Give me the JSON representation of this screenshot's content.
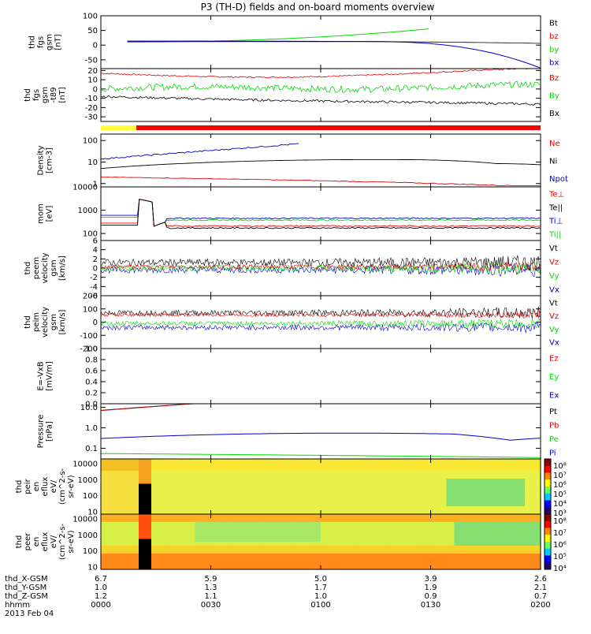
{
  "title": "P3 (TH-D) fields and on-board moments overview",
  "colors": {
    "black": "#000000",
    "red": "#e00000",
    "green": "#00dd00",
    "blue": "#0000cc",
    "yellow": "#ffff33",
    "bar_red": "#ff0000"
  },
  "chart_data": {
    "type": "line",
    "x_ticks": [
      "0000",
      "0030",
      "0100",
      "0130",
      "0200"
    ],
    "panels": [
      {
        "id": "fgs",
        "ylabel": [
          "thd",
          "fgs",
          "gsm",
          "[nT]"
        ],
        "yticks": [
          "100",
          "50",
          "0",
          "-50"
        ],
        "ylim": [
          -80,
          100
        ],
        "scale": "linear",
        "legend": [
          {
            "name": "Bt",
            "color": "#000000"
          },
          {
            "name": "bz",
            "color": "#e00000"
          },
          {
            "name": "by",
            "color": "#00dd00"
          },
          {
            "name": "bx",
            "color": "#0000cc"
          }
        ]
      },
      {
        "id": "fgs_dsl",
        "ylabel": [
          "thd",
          "fgs",
          "gsm",
          "-t89",
          "[nT]"
        ],
        "yticks": [
          "20",
          "10",
          "0",
          "-10",
          "-20",
          "-30"
        ],
        "ylim": [
          -35,
          22
        ],
        "scale": "linear",
        "legend": [
          {
            "name": "Bz",
            "color": "#e00000"
          },
          {
            "name": "By",
            "color": "#00dd00"
          },
          {
            "name": "Bx",
            "color": "#000000"
          }
        ]
      },
      {
        "id": "density",
        "ylabel": [
          "Density",
          "[cm-3]"
        ],
        "yticks": [
          "100",
          "10",
          "1"
        ],
        "ylim": [
          0.7,
          200
        ],
        "scale": "log",
        "legend": [
          {
            "name": "Ne",
            "color": "#e00000"
          },
          {
            "name": "Ni",
            "color": "#000000"
          },
          {
            "name": "Npot",
            "color": "#0000cc"
          }
        ]
      },
      {
        "id": "temp",
        "ylabel": [
          "mom",
          "[eV]"
        ],
        "yticks": [
          "10000",
          "1000",
          "100"
        ],
        "ylim": [
          50,
          10000
        ],
        "scale": "log",
        "legend": [
          {
            "name": "Te⊥",
            "color": "#e00000"
          },
          {
            "name": "Te||",
            "color": "#000000"
          },
          {
            "name": "Ti⊥",
            "color": "#0000cc"
          },
          {
            "name": "Ti||",
            "color": "#00dd00"
          }
        ]
      },
      {
        "id": "vel_e",
        "ylabel": [
          "thd",
          "peem",
          "velocity",
          "gsm",
          "[km/s]"
        ],
        "yticks": [
          "6",
          "4",
          "2",
          "0",
          "-2",
          "-4",
          "-6"
        ],
        "ylim": [
          -6,
          6
        ],
        "scale": "linear",
        "legend": [
          {
            "name": "Vt",
            "color": "#000000"
          },
          {
            "name": "Vz",
            "color": "#e00000"
          },
          {
            "name": "Vy",
            "color": "#00dd00"
          },
          {
            "name": "Vx",
            "color": "#0000cc"
          }
        ]
      },
      {
        "id": "vel_i",
        "ylabel": [
          "thd",
          "peim",
          "velocity",
          "gsm",
          "[km/s]"
        ],
        "yticks": [
          "200",
          "100",
          "0",
          "-100",
          "-200"
        ],
        "ylim": [
          -200,
          200
        ],
        "scale": "linear",
        "legend": [
          {
            "name": "Vt",
            "color": "#000000"
          },
          {
            "name": "Vz",
            "color": "#e00000"
          },
          {
            "name": "Vy",
            "color": "#00dd00"
          },
          {
            "name": "Vx",
            "color": "#0000cc"
          }
        ]
      },
      {
        "id": "efield",
        "ylabel": [
          "E=-VxB",
          "[mV/m]"
        ],
        "yticks": [
          "1.0",
          "0.8",
          "0.6",
          "0.4",
          "0.2",
          "0.0"
        ],
        "ylim": [
          0,
          1
        ],
        "scale": "linear",
        "legend": [
          {
            "name": "Ez",
            "color": "#e00000"
          },
          {
            "name": "Ey",
            "color": "#00dd00"
          },
          {
            "name": "Ex",
            "color": "#0000cc"
          }
        ]
      },
      {
        "id": "pressure",
        "ylabel": [
          "Pressure",
          "[nPa]"
        ],
        "yticks": [
          "10.0",
          "1.0",
          "0.1"
        ],
        "ylim": [
          0.03,
          15
        ],
        "scale": "log",
        "legend": [
          {
            "name": "Pt",
            "color": "#000000"
          },
          {
            "name": "Pb",
            "color": "#e00000"
          },
          {
            "name": "Pe",
            "color": "#00dd00"
          },
          {
            "name": "Pi",
            "color": "#0000cc"
          }
        ]
      },
      {
        "id": "spec_i",
        "ylabel": [
          "thd",
          "peir",
          "en",
          "eflux",
          "eV/",
          "(cm^2-s-",
          "sr-eV)"
        ],
        "yticks": [
          "10000",
          "1000",
          "100",
          "10"
        ],
        "ylim": [
          7,
          20000
        ],
        "scale": "log",
        "colorbar": [
          "10⁸",
          "10⁷",
          "10⁶",
          "10⁵",
          "10⁴",
          "10³"
        ]
      },
      {
        "id": "spec_e",
        "ylabel": [
          "thd",
          "peer",
          "en",
          "eflux",
          "eV/",
          "(cm^2-s-",
          "sr-eV)"
        ],
        "yticks": [
          "10000",
          "1000",
          "100",
          "10"
        ],
        "ylim": [
          7,
          20000
        ],
        "scale": "log",
        "colorbar": [
          "10⁸",
          "10⁷",
          "10⁶",
          "10⁵",
          "10⁴"
        ]
      }
    ],
    "ephemeris": {
      "labels": [
        "thd_X-GSM",
        "thd_Y-GSM",
        "thd_Z-GSM",
        "hhmm"
      ],
      "columns": [
        [
          "6.7",
          "1.0",
          "1.2",
          "0000"
        ],
        [
          "5.9",
          "1.3",
          "1.1",
          "0030"
        ],
        [
          "5.0",
          "1.7",
          "1.0",
          "0100"
        ],
        [
          "3.9",
          "1.9",
          "0.9",
          "0130"
        ],
        [
          "2.6",
          "2.1",
          "0.7",
          "0200"
        ]
      ]
    },
    "date": "2013 Feb 04"
  }
}
